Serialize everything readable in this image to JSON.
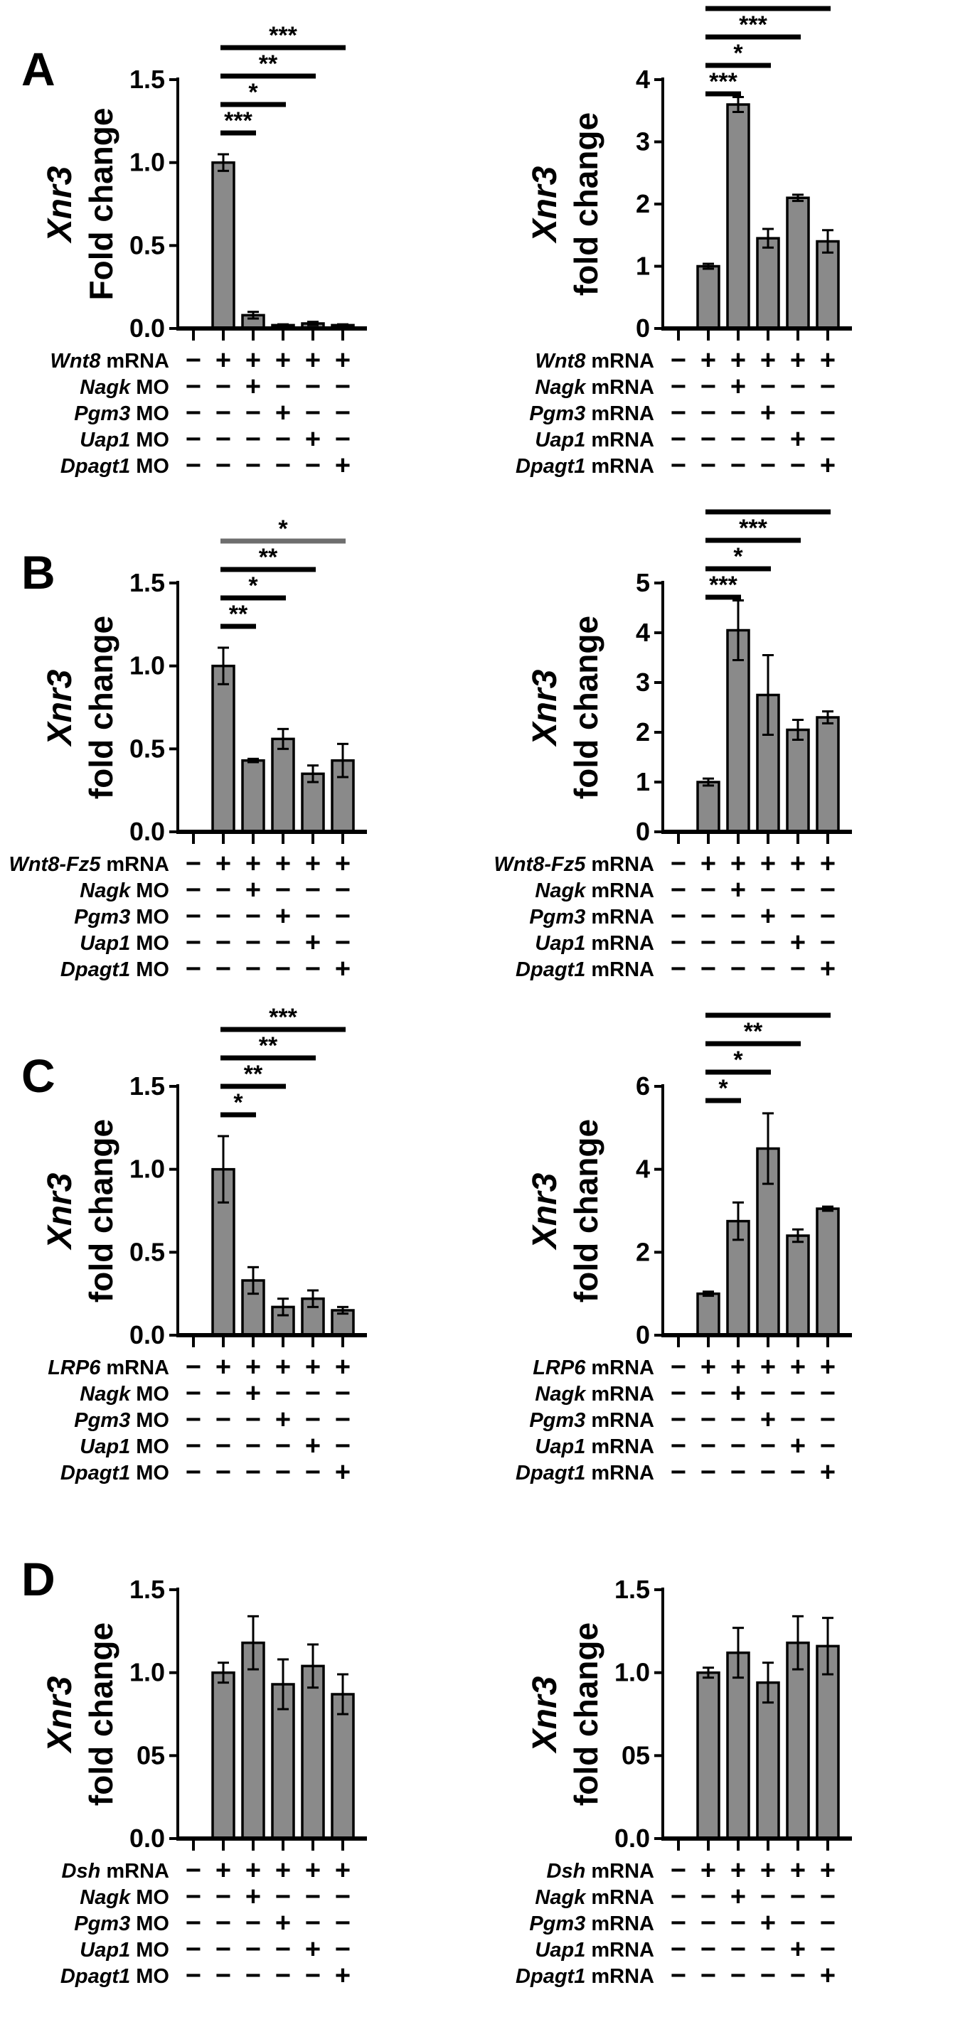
{
  "figure": {
    "background": "#ffffff",
    "bar_fill": "#8a8a8a",
    "bar_edge": "#000000",
    "sig_color": "#000000",
    "sig_color_gray": "#6e6e6e",
    "axis_color": "#000000"
  },
  "chart_data": [
    {
      "type": "bar",
      "panel_letter": "A",
      "side": "left",
      "ylabel_gene": "Xnr3",
      "ylabel_rest": "Fold change",
      "ymax": 1.5,
      "yticks": [
        {
          "label": "1.5",
          "value": 1.5
        },
        {
          "label": "1.0",
          "value": 1.0
        },
        {
          "label": "0.5",
          "value": 0.5
        },
        {
          "label": "0.0",
          "value": 0.0
        }
      ],
      "values": [
        0,
        1.0,
        0.08,
        0.02,
        0.03,
        0.02
      ],
      "errors": [
        0,
        0.05,
        0.02,
        0.005,
        0.01,
        0.005
      ],
      "significance": [
        {
          "from": 2,
          "to": 3,
          "label": "***",
          "gray": false
        },
        {
          "from": 2,
          "to": 4,
          "label": "*",
          "gray": false
        },
        {
          "from": 2,
          "to": 5,
          "label": "**",
          "gray": false
        },
        {
          "from": 2,
          "to": 6,
          "label": "***",
          "gray": false
        }
      ],
      "conditions": [
        {
          "gene": "Wnt8",
          "suffix": " mRNA",
          "signs": [
            "−",
            "+",
            "+",
            "+",
            "+",
            "+"
          ]
        },
        {
          "gene": "Nagk",
          "suffix": " MO",
          "signs": [
            "−",
            "−",
            "+",
            "−",
            "−",
            "−"
          ]
        },
        {
          "gene": "Pgm3",
          "suffix": " MO",
          "signs": [
            "−",
            "−",
            "−",
            "+",
            "−",
            "−"
          ]
        },
        {
          "gene": "Uap1",
          "suffix": " MO",
          "signs": [
            "−",
            "−",
            "−",
            "−",
            "+",
            "−"
          ]
        },
        {
          "gene": "Dpagt1",
          "suffix": " MO",
          "signs": [
            "−",
            "−",
            "−",
            "−",
            "−",
            "+"
          ]
        }
      ]
    },
    {
      "type": "bar",
      "panel_letter": "",
      "side": "right",
      "ylabel_gene": "Xnr3",
      "ylabel_rest": "fold change",
      "ymax": 4,
      "yticks": [
        {
          "label": "4",
          "value": 4
        },
        {
          "label": "3",
          "value": 3
        },
        {
          "label": "2",
          "value": 2
        },
        {
          "label": "1",
          "value": 1
        },
        {
          "label": "0",
          "value": 0
        }
      ],
      "values": [
        0,
        1.0,
        3.6,
        1.45,
        2.1,
        1.4
      ],
      "errors": [
        0,
        0.04,
        0.12,
        0.15,
        0.05,
        0.18
      ],
      "significance": [
        {
          "from": 2,
          "to": 3,
          "label": "***",
          "gray": false
        },
        {
          "from": 2,
          "to": 4,
          "label": "*",
          "gray": false
        },
        {
          "from": 2,
          "to": 5,
          "label": "***",
          "gray": false
        },
        {
          "from": 2,
          "to": 6,
          "label": "*",
          "gray": false
        }
      ],
      "conditions": [
        {
          "gene": "Wnt8",
          "suffix": " mRNA",
          "signs": [
            "−",
            "+",
            "+",
            "+",
            "+",
            "+"
          ]
        },
        {
          "gene": "Nagk",
          "suffix": " mRNA",
          "signs": [
            "−",
            "−",
            "+",
            "−",
            "−",
            "−"
          ]
        },
        {
          "gene": "Pgm3",
          "suffix": " mRNA",
          "signs": [
            "−",
            "−",
            "−",
            "+",
            "−",
            "−"
          ]
        },
        {
          "gene": "Uap1",
          "suffix": " mRNA",
          "signs": [
            "−",
            "−",
            "−",
            "−",
            "+",
            "−"
          ]
        },
        {
          "gene": "Dpagt1",
          "suffix": " mRNA",
          "signs": [
            "−",
            "−",
            "−",
            "−",
            "−",
            "+"
          ]
        }
      ]
    },
    {
      "type": "bar",
      "panel_letter": "B",
      "side": "left",
      "ylabel_gene": "Xnr3",
      "ylabel_rest": "fold change",
      "ymax": 1.5,
      "yticks": [
        {
          "label": "1.5",
          "value": 1.5
        },
        {
          "label": "1.0",
          "value": 1.0
        },
        {
          "label": "0.5",
          "value": 0.5
        },
        {
          "label": "0.0",
          "value": 0.0
        }
      ],
      "values": [
        0,
        1.0,
        0.43,
        0.56,
        0.35,
        0.43
      ],
      "errors": [
        0,
        0.11,
        0.01,
        0.06,
        0.05,
        0.1
      ],
      "significance": [
        {
          "from": 2,
          "to": 3,
          "label": "**",
          "gray": false
        },
        {
          "from": 2,
          "to": 4,
          "label": "*",
          "gray": false
        },
        {
          "from": 2,
          "to": 5,
          "label": "**",
          "gray": false
        },
        {
          "from": 2,
          "to": 6,
          "label": "*",
          "gray": true
        }
      ],
      "conditions": [
        {
          "gene": "Wnt8-Fz5",
          "suffix": " mRNA",
          "signs": [
            "−",
            "+",
            "+",
            "+",
            "+",
            "+"
          ]
        },
        {
          "gene": "Nagk",
          "suffix": " MO",
          "signs": [
            "−",
            "−",
            "+",
            "−",
            "−",
            "−"
          ]
        },
        {
          "gene": "Pgm3",
          "suffix": " MO",
          "signs": [
            "−",
            "−",
            "−",
            "+",
            "−",
            "−"
          ]
        },
        {
          "gene": "Uap1",
          "suffix": " MO",
          "signs": [
            "−",
            "−",
            "−",
            "−",
            "+",
            "−"
          ]
        },
        {
          "gene": "Dpagt1",
          "suffix": " MO",
          "signs": [
            "−",
            "−",
            "−",
            "−",
            "−",
            "+"
          ]
        }
      ]
    },
    {
      "type": "bar",
      "panel_letter": "",
      "side": "right",
      "ylabel_gene": "Xnr3",
      "ylabel_rest": "fold change",
      "ymax": 5,
      "yticks": [
        {
          "label": "5",
          "value": 5
        },
        {
          "label": "4",
          "value": 4
        },
        {
          "label": "3",
          "value": 3
        },
        {
          "label": "2",
          "value": 2
        },
        {
          "label": "1",
          "value": 1
        },
        {
          "label": "0",
          "value": 0
        }
      ],
      "values": [
        0,
        1.0,
        4.05,
        2.75,
        2.05,
        2.3
      ],
      "errors": [
        0,
        0.07,
        0.6,
        0.8,
        0.2,
        0.12
      ],
      "significance": [
        {
          "from": 2,
          "to": 3,
          "label": "***",
          "gray": false
        },
        {
          "from": 2,
          "to": 4,
          "label": "*",
          "gray": false
        },
        {
          "from": 2,
          "to": 5,
          "label": "***",
          "gray": false
        },
        {
          "from": 2,
          "to": 6,
          "label": "***",
          "gray": false
        }
      ],
      "conditions": [
        {
          "gene": "Wnt8-Fz5",
          "suffix": " mRNA",
          "signs": [
            "−",
            "+",
            "+",
            "+",
            "+",
            "+"
          ]
        },
        {
          "gene": "Nagk",
          "suffix": " mRNA",
          "signs": [
            "−",
            "−",
            "+",
            "−",
            "−",
            "−"
          ]
        },
        {
          "gene": "Pgm3",
          "suffix": " mRNA",
          "signs": [
            "−",
            "−",
            "−",
            "+",
            "−",
            "−"
          ]
        },
        {
          "gene": "Uap1",
          "suffix": " mRNA",
          "signs": [
            "−",
            "−",
            "−",
            "−",
            "+",
            "−"
          ]
        },
        {
          "gene": "Dpagt1",
          "suffix": " mRNA",
          "signs": [
            "−",
            "−",
            "−",
            "−",
            "−",
            "+"
          ]
        }
      ]
    },
    {
      "type": "bar",
      "panel_letter": "C",
      "side": "left",
      "ylabel_gene": "Xnr3",
      "ylabel_rest": "fold change",
      "ymax": 1.5,
      "yticks": [
        {
          "label": "1.5",
          "value": 1.5
        },
        {
          "label": "1.0",
          "value": 1.0
        },
        {
          "label": "0.5",
          "value": 0.5
        },
        {
          "label": "0.0",
          "value": 0.0
        }
      ],
      "values": [
        0,
        1.0,
        0.33,
        0.17,
        0.22,
        0.15
      ],
      "errors": [
        0,
        0.2,
        0.08,
        0.05,
        0.05,
        0.02
      ],
      "significance": [
        {
          "from": 2,
          "to": 3,
          "label": "*",
          "gray": false
        },
        {
          "from": 2,
          "to": 4,
          "label": "**",
          "gray": false
        },
        {
          "from": 2,
          "to": 5,
          "label": "**",
          "gray": false
        },
        {
          "from": 2,
          "to": 6,
          "label": "***",
          "gray": false
        }
      ],
      "conditions": [
        {
          "gene": "LRP6",
          "suffix": " mRNA",
          "signs": [
            "−",
            "+",
            "+",
            "+",
            "+",
            "+"
          ]
        },
        {
          "gene": "Nagk",
          "suffix": " MO",
          "signs": [
            "−",
            "−",
            "+",
            "−",
            "−",
            "−"
          ]
        },
        {
          "gene": "Pgm3",
          "suffix": " MO",
          "signs": [
            "−",
            "−",
            "−",
            "+",
            "−",
            "−"
          ]
        },
        {
          "gene": "Uap1",
          "suffix": " MO",
          "signs": [
            "−",
            "−",
            "−",
            "−",
            "+",
            "−"
          ]
        },
        {
          "gene": "Dpagt1",
          "suffix": " MO",
          "signs": [
            "−",
            "−",
            "−",
            "−",
            "−",
            "+"
          ]
        }
      ]
    },
    {
      "type": "bar",
      "panel_letter": "",
      "side": "right",
      "ylabel_gene": "Xnr3",
      "ylabel_rest": "fold change",
      "ymax": 6,
      "yticks": [
        {
          "label": "6",
          "value": 6
        },
        {
          "label": "4",
          "value": 4
        },
        {
          "label": "2",
          "value": 2
        },
        {
          "label": "0",
          "value": 0
        }
      ],
      "values": [
        0,
        1.0,
        2.75,
        4.5,
        2.4,
        3.05
      ],
      "errors": [
        0,
        0.05,
        0.45,
        0.85,
        0.15,
        0.05
      ],
      "significance": [
        {
          "from": 2,
          "to": 3,
          "label": "*",
          "gray": false
        },
        {
          "from": 2,
          "to": 4,
          "label": "*",
          "gray": false
        },
        {
          "from": 2,
          "to": 5,
          "label": "**",
          "gray": false
        },
        {
          "from": 2,
          "to": 6,
          "label": "**",
          "gray": false
        }
      ],
      "conditions": [
        {
          "gene": "LRP6",
          "suffix": " mRNA",
          "signs": [
            "−",
            "+",
            "+",
            "+",
            "+",
            "+"
          ]
        },
        {
          "gene": "Nagk",
          "suffix": " mRNA",
          "signs": [
            "−",
            "−",
            "+",
            "−",
            "−",
            "−"
          ]
        },
        {
          "gene": "Pgm3",
          "suffix": " mRNA",
          "signs": [
            "−",
            "−",
            "−",
            "+",
            "−",
            "−"
          ]
        },
        {
          "gene": "Uap1",
          "suffix": " mRNA",
          "signs": [
            "−",
            "−",
            "−",
            "−",
            "+",
            "−"
          ]
        },
        {
          "gene": "Dpagt1",
          "suffix": " mRNA",
          "signs": [
            "−",
            "−",
            "−",
            "−",
            "−",
            "+"
          ]
        }
      ]
    },
    {
      "type": "bar",
      "panel_letter": "D",
      "side": "left",
      "ylabel_gene": "Xnr3",
      "ylabel_rest": "fold change",
      "ymax": 1.5,
      "yticks": [
        {
          "label": "1.5",
          "value": 1.5
        },
        {
          "label": "1.0",
          "value": 1.0
        },
        {
          "label": "05",
          "value": 0.5
        },
        {
          "label": "0.0",
          "value": 0.0
        }
      ],
      "values": [
        0,
        1.0,
        1.18,
        0.93,
        1.04,
        0.87
      ],
      "errors": [
        0,
        0.06,
        0.16,
        0.15,
        0.13,
        0.12
      ],
      "significance": [],
      "conditions": [
        {
          "gene": "Dsh",
          "suffix": " mRNA",
          "signs": [
            "−",
            "+",
            "+",
            "+",
            "+",
            "+"
          ]
        },
        {
          "gene": "Nagk",
          "suffix": " MO",
          "signs": [
            "−",
            "−",
            "+",
            "−",
            "−",
            "−"
          ]
        },
        {
          "gene": "Pgm3",
          "suffix": " MO",
          "signs": [
            "−",
            "−",
            "−",
            "+",
            "−",
            "−"
          ]
        },
        {
          "gene": "Uap1",
          "suffix": " MO",
          "signs": [
            "−",
            "−",
            "−",
            "−",
            "+",
            "−"
          ]
        },
        {
          "gene": "Dpagt1",
          "suffix": " MO",
          "signs": [
            "−",
            "−",
            "−",
            "−",
            "−",
            "+"
          ]
        }
      ]
    },
    {
      "type": "bar",
      "panel_letter": "",
      "side": "right",
      "ylabel_gene": "Xnr3",
      "ylabel_rest": "fold change",
      "ymax": 1.5,
      "yticks": [
        {
          "label": "1.5",
          "value": 1.5
        },
        {
          "label": "1.0",
          "value": 1.0
        },
        {
          "label": "05",
          "value": 0.5
        },
        {
          "label": "0.0",
          "value": 0.0
        }
      ],
      "values": [
        0,
        1.0,
        1.12,
        0.94,
        1.18,
        1.16
      ],
      "errors": [
        0,
        0.03,
        0.15,
        0.12,
        0.16,
        0.17
      ],
      "significance": [],
      "conditions": [
        {
          "gene": "Dsh",
          "suffix": " mRNA",
          "signs": [
            "−",
            "+",
            "+",
            "+",
            "+",
            "+"
          ]
        },
        {
          "gene": "Nagk",
          "suffix": " mRNA",
          "signs": [
            "−",
            "−",
            "+",
            "−",
            "−",
            "−"
          ]
        },
        {
          "gene": "Pgm3",
          "suffix": " mRNA",
          "signs": [
            "−",
            "−",
            "−",
            "+",
            "−",
            "−"
          ]
        },
        {
          "gene": "Uap1",
          "suffix": " mRNA",
          "signs": [
            "−",
            "−",
            "−",
            "−",
            "+",
            "−"
          ]
        },
        {
          "gene": "Dpagt1",
          "suffix": " mRNA",
          "signs": [
            "−",
            "−",
            "−",
            "−",
            "−",
            "+"
          ]
        }
      ]
    }
  ]
}
